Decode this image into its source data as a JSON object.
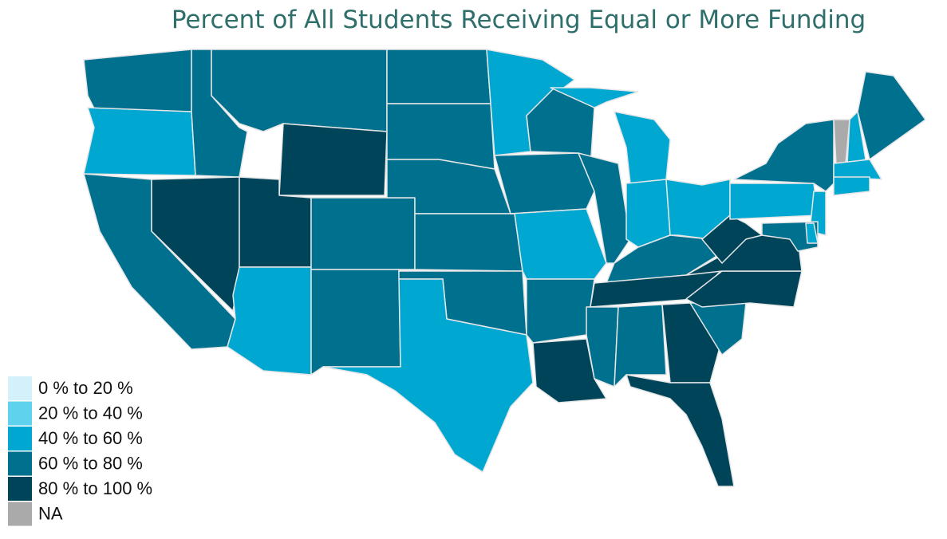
{
  "title": "Percent of All Students Receiving Equal or More Funding",
  "legend": {
    "items": [
      {
        "label": "0 % to 20 %",
        "color": "#d4f1fb"
      },
      {
        "label": "20 % to 40 %",
        "color": "#5fd3ed"
      },
      {
        "label": "40 % to 60 %",
        "color": "#00a8d1"
      },
      {
        "label": "60 % to 80 %",
        "color": "#00708f"
      },
      {
        "label": "80 % to 100 %",
        "color": "#00445a"
      },
      {
        "label": "NA",
        "color": "#aaaaaa"
      }
    ]
  }
}
